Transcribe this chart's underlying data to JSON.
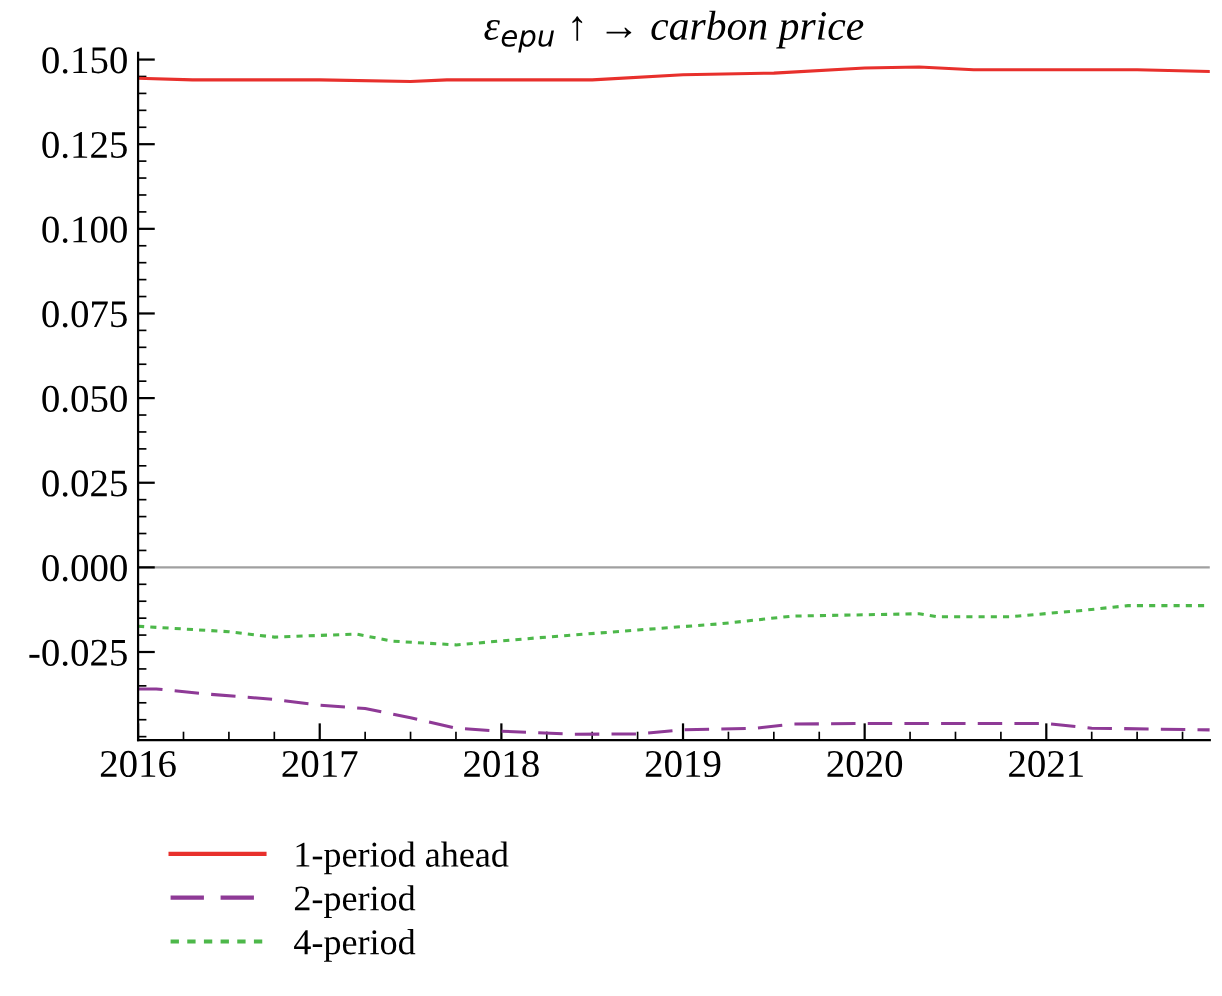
{
  "chart_data": {
    "type": "line",
    "title": "ε$_{epu}$ ↑ → carbon price",
    "xlim": [
      2016,
      2021.9
    ],
    "xticks": [
      2016,
      2017,
      2018,
      2019,
      2020,
      2021
    ],
    "ylim": [
      -0.051,
      0.152
    ],
    "yticks": [
      {
        "value": 0.15,
        "label": "0.150"
      },
      {
        "value": 0.125,
        "label": "0.125"
      },
      {
        "value": 0.1,
        "label": "0.100"
      },
      {
        "value": 0.075,
        "label": "0.075"
      },
      {
        "value": 0.05,
        "label": "0.050"
      },
      {
        "value": 0.025,
        "label": "0.025"
      },
      {
        "value": 0,
        "label": "0.000"
      },
      {
        "value": -0.025,
        "label": "-0.025"
      }
    ],
    "ref_lines": [
      {
        "axis": "y",
        "value": 0,
        "color": "#a0a0a0",
        "line_style": "solid"
      }
    ],
    "grid": false,
    "legend": "bottom",
    "series": [
      {
        "name": "1-period ahead",
        "color": "#e8302c",
        "line_style": "solid",
        "x": [
          2016,
          2016.3,
          2017,
          2017.5,
          2017.7,
          2018.5,
          2019,
          2019.5,
          2020,
          2020.3,
          2020.6,
          2021,
          2021.5,
          2021.9
        ],
        "values": [
          0.1445,
          0.144,
          0.144,
          0.1435,
          0.144,
          0.144,
          0.1455,
          0.146,
          0.1475,
          0.1478,
          0.147,
          0.147,
          0.147,
          0.1465
        ]
      },
      {
        "name": "2-period",
        "color": "#8e3a96",
        "line_style": "dashed",
        "x": [
          2016,
          2016.1,
          2016.4,
          2016.75,
          2017,
          2017.25,
          2017.5,
          2017.75,
          2018,
          2018.4,
          2018.75,
          2019,
          2019.4,
          2019.6,
          2020,
          2020.5,
          2021,
          2021.25,
          2021.9
        ],
        "values": [
          -0.0359,
          -0.0359,
          -0.0375,
          -0.039,
          -0.0407,
          -0.0417,
          -0.0444,
          -0.0475,
          -0.0484,
          -0.0493,
          -0.0492,
          -0.048,
          -0.0475,
          -0.0463,
          -0.0461,
          -0.0461,
          -0.0461,
          -0.0475,
          -0.048
        ]
      },
      {
        "name": "4-period",
        "color": "#4db84a",
        "line_style": "dotted",
        "x": [
          2016,
          2016.5,
          2016.75,
          2017.2,
          2017.4,
          2017.75,
          2018.2,
          2018.75,
          2019.2,
          2019.6,
          2020.3,
          2020.4,
          2020.8,
          2021.2,
          2021.45,
          2021.9
        ],
        "values": [
          -0.0174,
          -0.019,
          -0.0206,
          -0.0197,
          -0.0218,
          -0.0229,
          -0.0208,
          -0.0185,
          -0.0167,
          -0.0144,
          -0.0137,
          -0.0146,
          -0.0146,
          -0.0127,
          -0.0113,
          -0.0113
        ]
      }
    ]
  }
}
